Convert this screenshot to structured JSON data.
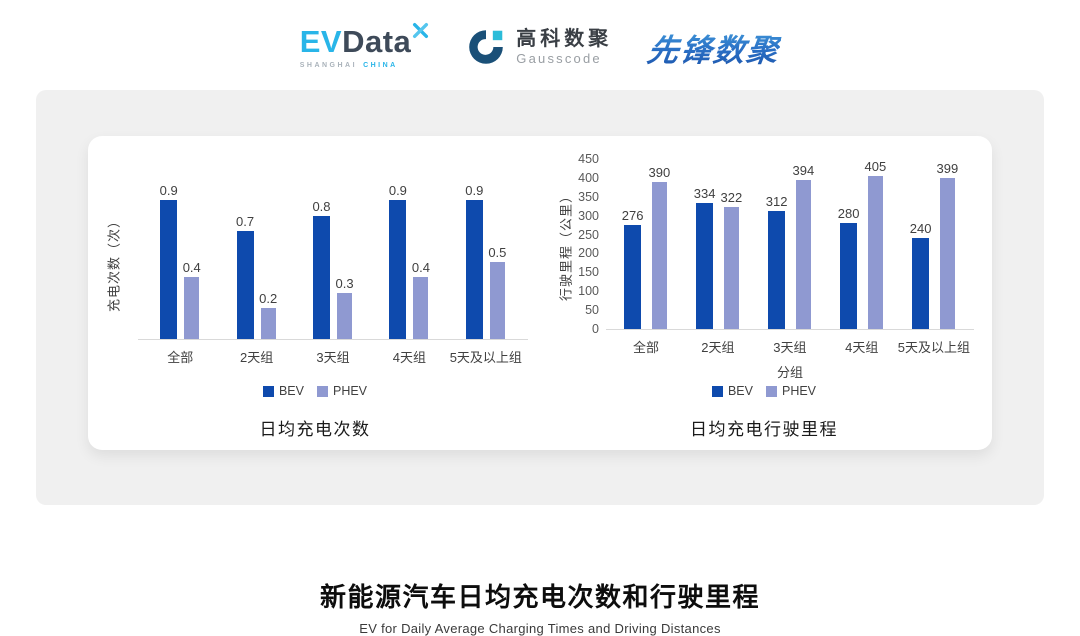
{
  "header": {
    "evdata": {
      "ev": "EV",
      "data": "Data",
      "sub_left": "SHANGHAI",
      "sub_right": "CHINA",
      "mark_icon": "x-star",
      "accent_color": "#29B5E8",
      "text_color": "#3E4A59"
    },
    "gausscode": {
      "cn": "高科数聚",
      "en": "Gausscode",
      "mark_icon": "g-ring",
      "mark_color": "#1A5078",
      "mark_accent": "#2BBCD9"
    },
    "xianfeng": {
      "text": "先锋数聚",
      "color": "#2A6FC5"
    }
  },
  "chart_data": [
    {
      "type": "bar",
      "categories": [
        "全部",
        "2天组",
        "3天组",
        "4天组",
        "5天及以上组"
      ],
      "series": [
        {
          "name": "BEV",
          "color": "#0E4AAD",
          "values": [
            0.9,
            0.7,
            0.8,
            0.9,
            0.9
          ]
        },
        {
          "name": "PHEV",
          "color": "#8F99D1",
          "values": [
            0.4,
            0.2,
            0.3,
            0.4,
            0.5
          ]
        }
      ],
      "title": "日均充电次数",
      "xlabel": "",
      "ylabel": "充电次数（次）",
      "ylim": [
        0,
        1.0
      ],
      "yticks": [],
      "grid": false,
      "legend_position": "bottom",
      "value_labels": true
    },
    {
      "type": "bar",
      "categories": [
        "全部",
        "2天组",
        "3天组",
        "4天组",
        "5天及以上组"
      ],
      "series": [
        {
          "name": "BEV",
          "color": "#0E4AAD",
          "values": [
            276,
            334,
            312,
            280,
            240
          ]
        },
        {
          "name": "PHEV",
          "color": "#8F99D1",
          "values": [
            390,
            322,
            394,
            405,
            399
          ]
        }
      ],
      "title": "日均充电行驶里程",
      "xlabel": "分组",
      "ylabel": "行驶里程（公里）",
      "ylim": [
        0,
        450
      ],
      "yticks": [
        0,
        50,
        100,
        150,
        200,
        250,
        300,
        350,
        400,
        450
      ],
      "grid": false,
      "legend_position": "bottom",
      "value_labels": true
    }
  ],
  "footer": {
    "title": "新能源汽车日均充电次数和行驶里程",
    "subtitle": "EV for Daily Average Charging Times and Driving Distances"
  }
}
